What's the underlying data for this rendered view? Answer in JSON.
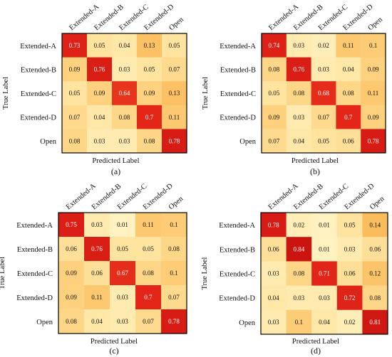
{
  "chart_data": [
    {
      "type": "heatmap",
      "panel": "(a)",
      "xlabel": "Predicted Label",
      "ylabel": "True Label",
      "categories": [
        "Extended-A",
        "Extended-B",
        "Extended-C",
        "Extended-D",
        "Open"
      ],
      "values": [
        [
          0.73,
          0.05,
          0.04,
          0.13,
          0.05
        ],
        [
          0.09,
          0.76,
          0.03,
          0.05,
          0.07
        ],
        [
          0.05,
          0.09,
          0.64,
          0.09,
          0.13
        ],
        [
          0.07,
          0.04,
          0.08,
          0.7,
          0.11
        ],
        [
          0.08,
          0.03,
          0.03,
          0.08,
          0.78
        ]
      ]
    },
    {
      "type": "heatmap",
      "panel": "(b)",
      "xlabel": "Predicted Label",
      "ylabel": "True Label",
      "categories": [
        "Extended-A",
        "Extended-B",
        "Extended-C",
        "Extended-D",
        "Open"
      ],
      "values": [
        [
          0.74,
          0.03,
          0.02,
          0.11,
          0.1
        ],
        [
          0.08,
          0.76,
          0.03,
          0.04,
          0.09
        ],
        [
          0.05,
          0.08,
          0.68,
          0.08,
          0.11
        ],
        [
          0.09,
          0.03,
          0.07,
          0.7,
          0.09
        ],
        [
          0.07,
          0.04,
          0.05,
          0.06,
          0.78
        ]
      ]
    },
    {
      "type": "heatmap",
      "panel": "(c)",
      "xlabel": "Predicted Label",
      "ylabel": "True Label",
      "categories": [
        "Extended-A",
        "Extended-B",
        "Extended-C",
        "Extended-D",
        "Open"
      ],
      "values": [
        [
          0.75,
          0.03,
          0.01,
          0.11,
          0.1
        ],
        [
          0.06,
          0.76,
          0.05,
          0.05,
          0.08
        ],
        [
          0.09,
          0.06,
          0.67,
          0.08,
          0.1
        ],
        [
          0.09,
          0.11,
          0.03,
          0.7,
          0.07
        ],
        [
          0.08,
          0.04,
          0.03,
          0.07,
          0.78
        ]
      ]
    },
    {
      "type": "heatmap",
      "panel": "(d)",
      "xlabel": "Predicted Label",
      "ylabel": "True Label",
      "categories": [
        "Extended-A",
        "Extended-B",
        "Extended-C",
        "Extended-D",
        "Open"
      ],
      "values": [
        [
          0.78,
          0.02,
          0.01,
          0.05,
          0.14
        ],
        [
          0.06,
          0.84,
          0.01,
          0.03,
          0.06
        ],
        [
          0.03,
          0.08,
          0.71,
          0.06,
          0.12
        ],
        [
          0.04,
          0.03,
          0.03,
          0.72,
          0.08
        ],
        [
          0.03,
          0.1,
          0.04,
          0.02,
          0.81
        ]
      ]
    }
  ]
}
